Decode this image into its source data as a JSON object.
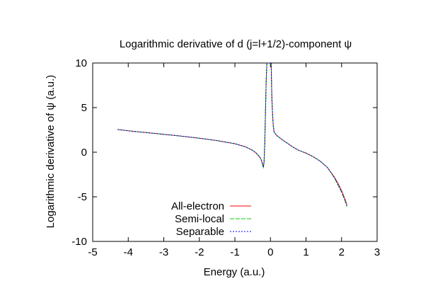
{
  "chart_data": {
    "type": "line",
    "title": "Logarithmic derivative of d (j=l+1/2)-component ψ",
    "xlabel": "Energy (a.u.)",
    "ylabel": "Logarithmic derivative of ψ (a.u.)",
    "xlim": [
      -5,
      3
    ],
    "ylim": [
      -10,
      10
    ],
    "xticks": [
      -5,
      -4,
      -3,
      -2,
      -1,
      0,
      1,
      2,
      3
    ],
    "yticks": [
      -10,
      -5,
      0,
      5,
      10
    ],
    "grid": false,
    "legend_position": "bottom-left",
    "series": [
      {
        "name": "All-electron",
        "color": "#ff0000",
        "dash": "solid",
        "x": [
          -4.3,
          -4.0,
          -3.5,
          -3.0,
          -2.5,
          -2.0,
          -1.5,
          -1.0,
          -0.7,
          -0.5,
          -0.4,
          -0.3,
          -0.25,
          -0.2,
          -0.18,
          -0.16,
          -0.14,
          -0.12,
          -0.1
        ],
        "y": [
          2.55,
          2.4,
          2.2,
          2.0,
          1.8,
          1.57,
          1.3,
          0.95,
          0.6,
          0.2,
          -0.1,
          -0.55,
          -0.95,
          -1.6,
          -1.1,
          1.0,
          4.5,
          8.0,
          10.0
        ],
        "x2": [
          0.02,
          0.04,
          0.06,
          0.08,
          0.1,
          0.15,
          0.2,
          0.3,
          0.4,
          0.5,
          0.6,
          0.8,
          1.0,
          1.2,
          1.4,
          1.6,
          1.8,
          1.9,
          2.0,
          2.05,
          2.1,
          2.15
        ],
        "y2": [
          10.0,
          6.0,
          4.2,
          3.0,
          2.3,
          2.0,
          1.8,
          1.5,
          1.2,
          0.95,
          0.65,
          0.2,
          -0.1,
          -0.5,
          -1.0,
          -1.7,
          -2.8,
          -3.5,
          -4.3,
          -4.8,
          -5.3,
          -5.9
        ]
      },
      {
        "name": "Semi-local",
        "color": "#00cc00",
        "dash": "dashed",
        "x": [
          -4.3,
          -4.0,
          -3.5,
          -3.0,
          -2.5,
          -2.0,
          -1.5,
          -1.0,
          -0.7,
          -0.5,
          -0.4,
          -0.3,
          -0.25,
          -0.2,
          -0.18,
          -0.16,
          -0.14,
          -0.12,
          -0.1
        ],
        "y": [
          2.55,
          2.4,
          2.2,
          2.0,
          1.8,
          1.57,
          1.3,
          0.95,
          0.6,
          0.2,
          -0.1,
          -0.55,
          -0.95,
          -1.8,
          -1.2,
          1.0,
          4.5,
          8.0,
          10.0
        ],
        "x2": [
          0.02,
          0.04,
          0.06,
          0.08,
          0.1,
          0.15,
          0.2,
          0.3,
          0.4,
          0.5,
          0.6,
          0.8,
          1.0,
          1.2,
          1.4,
          1.6,
          1.8,
          1.9,
          2.0,
          2.05,
          2.1,
          2.15
        ],
        "y2": [
          10.0,
          6.0,
          4.2,
          3.0,
          2.3,
          2.0,
          1.8,
          1.5,
          1.2,
          0.95,
          0.65,
          0.2,
          -0.1,
          -0.5,
          -1.0,
          -1.7,
          -2.9,
          -3.7,
          -4.5,
          -5.0,
          -5.5,
          -6.1
        ]
      },
      {
        "name": "Separable",
        "color": "#0000ff",
        "dash": "dotted",
        "x": [
          -4.3,
          -4.0,
          -3.5,
          -3.0,
          -2.5,
          -2.0,
          -1.5,
          -1.0,
          -0.7,
          -0.5,
          -0.4,
          -0.3,
          -0.25,
          -0.2,
          -0.18,
          -0.16,
          -0.14,
          -0.12,
          -0.1
        ],
        "y": [
          2.55,
          2.4,
          2.2,
          2.0,
          1.8,
          1.57,
          1.3,
          0.95,
          0.6,
          0.2,
          -0.1,
          -0.55,
          -0.95,
          -1.7,
          -1.15,
          1.0,
          4.5,
          8.0,
          10.0
        ],
        "x2": [
          0.02,
          0.04,
          0.06,
          0.08,
          0.1,
          0.15,
          0.2,
          0.3,
          0.4,
          0.5,
          0.6,
          0.8,
          1.0,
          1.2,
          1.4,
          1.6,
          1.8,
          1.9,
          2.0,
          2.05,
          2.1,
          2.15
        ],
        "y2": [
          10.0,
          6.0,
          4.2,
          3.0,
          2.3,
          2.0,
          1.8,
          1.5,
          1.2,
          0.95,
          0.65,
          0.2,
          -0.1,
          -0.5,
          -1.0,
          -1.7,
          -2.85,
          -3.6,
          -4.4,
          -4.9,
          -5.4,
          -6.0
        ]
      }
    ]
  }
}
